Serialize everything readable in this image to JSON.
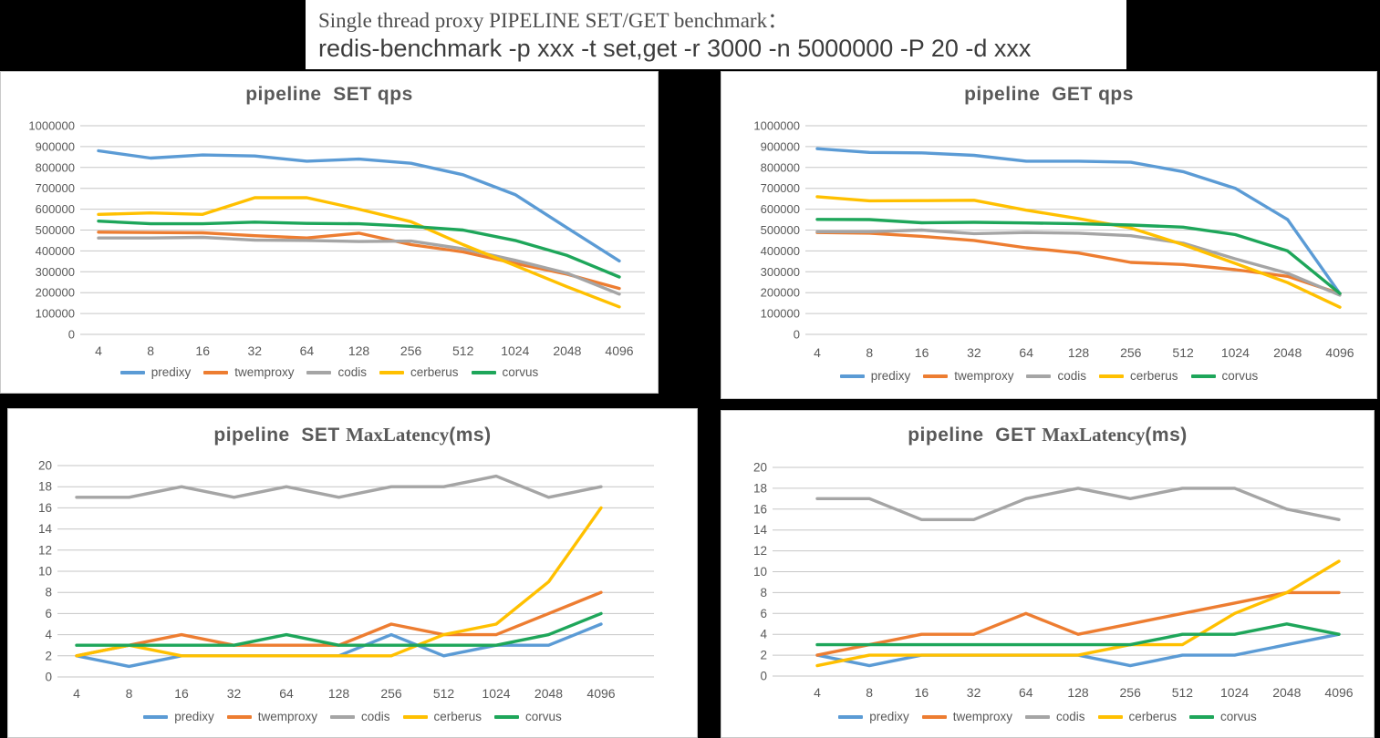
{
  "header": {
    "title": "Single thread proxy PIPELINE SET/GET benchmark：",
    "command": "redis-benchmark -p xxx -t set,get -r 3000 -n 5000000 -P 20 -d xxx"
  },
  "colors": {
    "predixy": "#5B9BD5",
    "twemproxy": "#ED7D31",
    "codis": "#A5A5A5",
    "cerberus": "#FFC000",
    "corvus": "#1EA65A",
    "gridline": "#C6C6C6",
    "axis_text": "#595959",
    "title_text": "#595959"
  },
  "legend_labels": [
    "predixy",
    "twemproxy",
    "codis",
    "cerberus",
    "corvus"
  ],
  "chart_data": [
    {
      "id": "pipeline-set-qps",
      "type": "line",
      "title_prefix": "pipeline  SET qps",
      "title_serif": "",
      "title_suffix": "",
      "grid": true,
      "legend_position": "bottom",
      "categories": [
        "4",
        "8",
        "16",
        "32",
        "64",
        "128",
        "256",
        "512",
        "1024",
        "2048",
        "4096"
      ],
      "ylim": [
        0,
        1000000
      ],
      "ystep": 100000,
      "series": [
        {
          "name": "predixy",
          "color": "#5B9BD5",
          "values": [
            880000,
            845000,
            860000,
            855000,
            830000,
            840000,
            820000,
            765000,
            670000,
            510000,
            352000
          ]
        },
        {
          "name": "twemproxy",
          "color": "#ED7D31",
          "values": [
            490000,
            488000,
            487000,
            473000,
            462000,
            485000,
            430000,
            395000,
            340000,
            288000,
            220000
          ]
        },
        {
          "name": "codis",
          "color": "#A5A5A5",
          "values": [
            462000,
            462000,
            465000,
            452000,
            450000,
            445000,
            447000,
            410000,
            355000,
            293000,
            193000
          ]
        },
        {
          "name": "cerberus",
          "color": "#FFC000",
          "values": [
            575000,
            582000,
            575000,
            655000,
            655000,
            600000,
            540000,
            430000,
            330000,
            228000,
            132000
          ]
        },
        {
          "name": "corvus",
          "color": "#1EA65A",
          "values": [
            543000,
            530000,
            530000,
            538000,
            532000,
            530000,
            518000,
            500000,
            450000,
            378000,
            275000
          ]
        }
      ]
    },
    {
      "id": "pipeline-get-qps",
      "type": "line",
      "title_prefix": "pipeline  GET qps",
      "title_serif": "",
      "title_suffix": "",
      "grid": true,
      "legend_position": "bottom",
      "categories": [
        "4",
        "8",
        "16",
        "32",
        "64",
        "128",
        "256",
        "512",
        "1024",
        "2048",
        "4096"
      ],
      "ylim": [
        0,
        1000000
      ],
      "ystep": 100000,
      "series": [
        {
          "name": "predixy",
          "color": "#5B9BD5",
          "values": [
            890000,
            872000,
            870000,
            858000,
            830000,
            830000,
            825000,
            780000,
            700000,
            550000,
            195000
          ]
        },
        {
          "name": "twemproxy",
          "color": "#ED7D31",
          "values": [
            488000,
            485000,
            470000,
            450000,
            415000,
            390000,
            345000,
            335000,
            310000,
            278000,
            195000
          ]
        },
        {
          "name": "codis",
          "color": "#A5A5A5",
          "values": [
            492000,
            492000,
            500000,
            483000,
            488000,
            485000,
            473000,
            437000,
            362000,
            293000,
            188000
          ]
        },
        {
          "name": "cerberus",
          "color": "#FFC000",
          "values": [
            660000,
            640000,
            641000,
            643000,
            595000,
            555000,
            510000,
            430000,
            340000,
            248000,
            130000
          ]
        },
        {
          "name": "corvus",
          "color": "#1EA65A",
          "values": [
            551000,
            550000,
            535000,
            537000,
            534000,
            530000,
            524000,
            514000,
            478000,
            400000,
            196000
          ]
        }
      ]
    },
    {
      "id": "pipeline-set-maxlatency",
      "type": "line",
      "title_prefix": "pipeline  SET ",
      "title_serif": "MaxLatency",
      "title_suffix": "(ms)",
      "grid": true,
      "legend_position": "bottom",
      "categories": [
        "4",
        "8",
        "16",
        "32",
        "64",
        "128",
        "256",
        "512",
        "1024",
        "2048",
        "4096"
      ],
      "ylim": [
        0,
        20
      ],
      "ystep": 2,
      "series": [
        {
          "name": "predixy",
          "color": "#5B9BD5",
          "values": [
            2,
            1,
            2,
            2,
            2,
            2,
            4,
            2,
            3,
            3,
            5
          ]
        },
        {
          "name": "twemproxy",
          "color": "#ED7D31",
          "values": [
            2,
            3,
            4,
            3,
            3,
            3,
            5,
            4,
            4,
            6,
            8
          ]
        },
        {
          "name": "codis",
          "color": "#A5A5A5",
          "values": [
            17,
            17,
            18,
            17,
            18,
            17,
            18,
            18,
            19,
            17,
            18
          ]
        },
        {
          "name": "cerberus",
          "color": "#FFC000",
          "values": [
            2,
            3,
            2,
            2,
            2,
            2,
            2,
            4,
            5,
            9,
            16
          ]
        },
        {
          "name": "corvus",
          "color": "#1EA65A",
          "values": [
            3,
            3,
            3,
            3,
            4,
            3,
            3,
            3,
            3,
            4,
            6
          ]
        }
      ]
    },
    {
      "id": "pipeline-get-maxlatency",
      "type": "line",
      "title_prefix": "pipeline  GET ",
      "title_serif": "MaxLatency",
      "title_suffix": "(ms)",
      "grid": true,
      "legend_position": "bottom",
      "categories": [
        "4",
        "8",
        "16",
        "32",
        "64",
        "128",
        "256",
        "512",
        "1024",
        "2048",
        "4096"
      ],
      "ylim": [
        0,
        20
      ],
      "ystep": 2,
      "series": [
        {
          "name": "predixy",
          "color": "#5B9BD5",
          "values": [
            2,
            1,
            2,
            2,
            2,
            2,
            1,
            2,
            2,
            3,
            4
          ]
        },
        {
          "name": "twemproxy",
          "color": "#ED7D31",
          "values": [
            2,
            3,
            4,
            4,
            6,
            4,
            5,
            6,
            7,
            8,
            8
          ]
        },
        {
          "name": "codis",
          "color": "#A5A5A5",
          "values": [
            17,
            17,
            15,
            15,
            17,
            18,
            17,
            18,
            18,
            16,
            15
          ]
        },
        {
          "name": "cerberus",
          "color": "#FFC000",
          "values": [
            1,
            2,
            2,
            2,
            2,
            2,
            3,
            3,
            6,
            8,
            11
          ]
        },
        {
          "name": "corvus",
          "color": "#1EA65A",
          "values": [
            3,
            3,
            3,
            3,
            3,
            3,
            3,
            4,
            4,
            5,
            4
          ]
        }
      ]
    }
  ]
}
